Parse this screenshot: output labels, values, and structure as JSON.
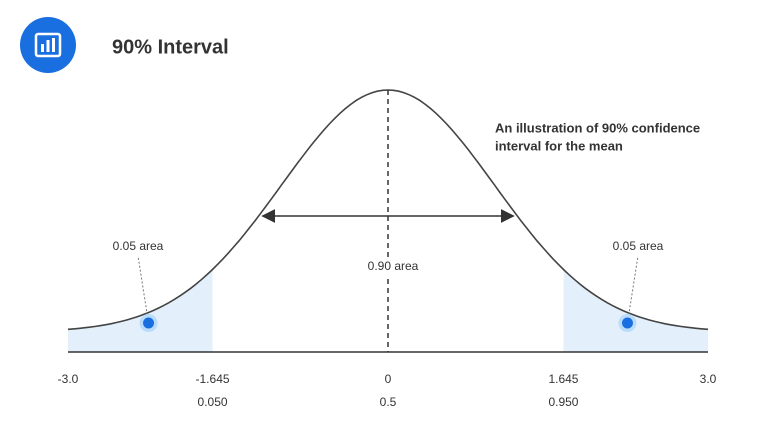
{
  "header": {
    "title": "90% Interval"
  },
  "annotation": [
    "An illustration of 90% confidence",
    "interval for the mean"
  ],
  "left_area": "0.05 area",
  "right_area": "0.05 area",
  "center_area": "0.90 area",
  "axis": {
    "ticks": [
      {
        "value": -3,
        "label": "-3.0"
      },
      {
        "value": -1.645,
        "label": "-1.645"
      },
      0,
      1.645,
      {
        "value": 3,
        "label": "3.0"
      }
    ],
    "probabilities": [
      null,
      "0.050",
      "0.5",
      "0.950",
      null
    ]
  }
}
